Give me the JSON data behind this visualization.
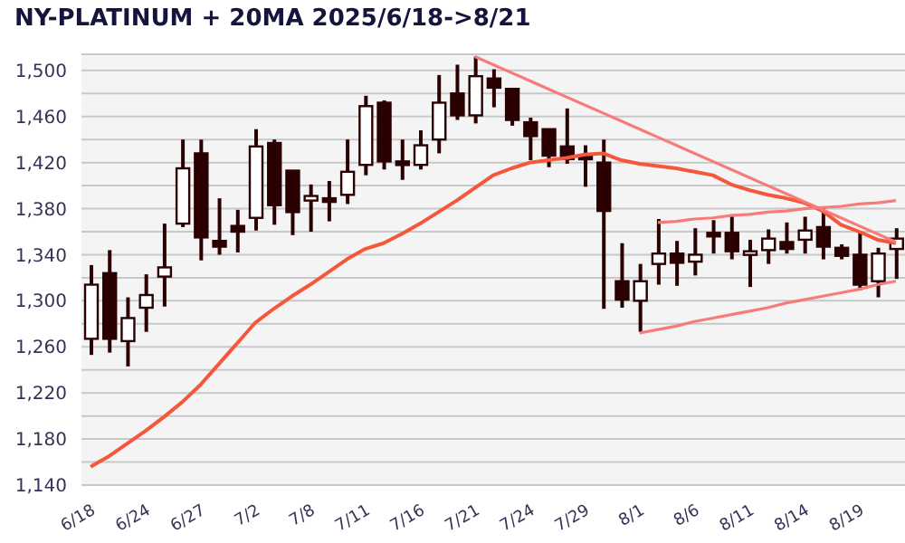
{
  "chart_data": {
    "type": "candlestick",
    "title": "NY-PLATINUM + 20MA 2025/6/18->8/21",
    "categories": [
      "6/18",
      null,
      null,
      "6/24",
      null,
      null,
      "6/27",
      null,
      null,
      "7/2",
      null,
      null,
      "7/8",
      null,
      null,
      "7/11",
      null,
      null,
      "7/16",
      null,
      null,
      "7/21",
      null,
      null,
      "7/24",
      null,
      null,
      "7/29",
      null,
      null,
      "8/1",
      null,
      null,
      "8/6",
      null,
      null,
      "8/11",
      null,
      null,
      "8/14",
      null,
      null,
      "8/19",
      null,
      null
    ],
    "color": "#2b0000",
    "ohlc": [
      [
        1267,
        1331,
        1253,
        1314
      ],
      [
        1324,
        1344,
        1255,
        1267
      ],
      [
        1265,
        1303,
        1243,
        1285
      ],
      [
        1294,
        1323,
        1273,
        1305
      ],
      [
        1321,
        1367,
        1295,
        1329
      ],
      [
        1367,
        1440,
        1364,
        1415
      ],
      [
        1428,
        1440,
        1335,
        1355
      ],
      [
        1352,
        1389,
        1340,
        1347
      ],
      [
        1365,
        1379,
        1342,
        1360
      ],
      [
        1372,
        1449,
        1361,
        1434
      ],
      [
        1437,
        1440,
        1366,
        1383
      ],
      [
        1413,
        1413,
        1357,
        1377
      ],
      [
        1387,
        1401,
        1360,
        1391
      ],
      [
        1389,
        1404,
        1369,
        1387
      ],
      [
        1392,
        1440,
        1384,
        1412
      ],
      [
        1418,
        1478,
        1409,
        1469
      ],
      [
        1472,
        1474,
        1414,
        1421
      ],
      [
        1421,
        1440,
        1405,
        1418
      ],
      [
        1418,
        1448,
        1414,
        1435
      ],
      [
        1440,
        1496,
        1428,
        1472
      ],
      [
        1480,
        1505,
        1457,
        1461
      ],
      [
        1461,
        1512,
        1454,
        1495
      ],
      [
        1493,
        1501,
        1468,
        1485
      ],
      [
        1484,
        1484,
        1452,
        1457
      ],
      [
        1455,
        1459,
        1422,
        1443
      ],
      [
        1449,
        1449,
        1416,
        1426
      ],
      [
        1434,
        1467,
        1419,
        1423
      ],
      [
        1426,
        1435,
        1399,
        1423
      ],
      [
        1420,
        1440,
        1293,
        1378
      ],
      [
        1317,
        1350,
        1294,
        1301
      ],
      [
        1300,
        1332,
        1273,
        1317
      ],
      [
        1332,
        1371,
        1314,
        1341
      ],
      [
        1341,
        1352,
        1313,
        1333
      ],
      [
        1334,
        1363,
        1322,
        1340
      ],
      [
        1359,
        1370,
        1341,
        1356
      ],
      [
        1359,
        1375,
        1336,
        1343
      ],
      [
        1340,
        1353,
        1312,
        1343
      ],
      [
        1344,
        1362,
        1332,
        1354
      ],
      [
        1351,
        1368,
        1341,
        1345
      ],
      [
        1353,
        1373,
        1341,
        1361
      ],
      [
        1364,
        1380,
        1336,
        1347
      ],
      [
        1346,
        1349,
        1336,
        1339
      ],
      [
        1340,
        1360,
        1309,
        1314
      ],
      [
        1317,
        1346,
        1303,
        1341
      ],
      [
        1345,
        1363,
        1319,
        1354
      ]
    ],
    "series": [
      {
        "type": "line",
        "color": "#f4573a",
        "values": [
          1156,
          1165,
          1176,
          1187,
          1199,
          1212,
          1227,
          1245,
          1263,
          1281,
          1293,
          1304,
          1314,
          1325,
          1336,
          1345,
          1350,
          1358,
          1367,
          1377,
          1387,
          1398,
          1409,
          1415,
          1420,
          1422,
          1424,
          1427,
          1428,
          1422,
          1419,
          1417,
          1415,
          1412,
          1409,
          1401,
          1396,
          1392,
          1389,
          1385,
          1378,
          1366,
          1360,
          1353,
          1350
        ]
      },
      {
        "type": "line",
        "color": "#f77b78",
        "values": [
          null,
          null,
          null,
          null,
          null,
          null,
          null,
          null,
          null,
          null,
          null,
          null,
          null,
          null,
          null,
          null,
          null,
          null,
          null,
          null,
          null,
          1512,
          1505,
          1498,
          1491,
          1484,
          1477,
          1470,
          1463,
          1456,
          1449,
          1442,
          1435,
          1428,
          1421,
          1414,
          1407,
          1400,
          1393,
          1386,
          1379,
          1372,
          1365,
          1358,
          1351
        ]
      },
      {
        "type": "line",
        "color": "#f77b78",
        "values": [
          null,
          null,
          null,
          null,
          null,
          null,
          null,
          null,
          null,
          null,
          null,
          null,
          null,
          null,
          null,
          null,
          null,
          null,
          null,
          null,
          null,
          null,
          null,
          null,
          null,
          null,
          null,
          null,
          null,
          null,
          null,
          1368,
          1369,
          1371,
          1372,
          1374,
          1375,
          1377,
          1378,
          1380,
          1381,
          1382,
          1384,
          1385,
          1387
        ]
      },
      {
        "type": "line",
        "color": "#f77b78",
        "values": [
          null,
          null,
          null,
          null,
          null,
          null,
          null,
          null,
          null,
          null,
          null,
          null,
          null,
          null,
          null,
          null,
          null,
          null,
          null,
          null,
          null,
          null,
          null,
          null,
          null,
          null,
          null,
          null,
          null,
          null,
          1272,
          1275,
          1278,
          1282,
          1285,
          1288,
          1291,
          1294,
          1298,
          1301,
          1304,
          1307,
          1310,
          1314,
          1317
        ]
      }
    ],
    "ylim": [
      1140,
      1514
    ],
    "yticks": [
      {
        "value": 1140,
        "label": "1,140"
      },
      {
        "value": 1160,
        "label": null
      },
      {
        "value": 1180,
        "label": "1,180"
      },
      {
        "value": 1200,
        "label": null
      },
      {
        "value": 1220,
        "label": "1,220"
      },
      {
        "value": 1240,
        "label": null
      },
      {
        "value": 1260,
        "label": "1,260"
      },
      {
        "value": 1280,
        "label": null
      },
      {
        "value": 1300,
        "label": "1,300"
      },
      {
        "value": 1320,
        "label": null
      },
      {
        "value": 1340,
        "label": "1,340"
      },
      {
        "value": 1360,
        "label": null
      },
      {
        "value": 1380,
        "label": "1,380"
      },
      {
        "value": 1400,
        "label": null
      },
      {
        "value": 1420,
        "label": "1,420"
      },
      {
        "value": 1440,
        "label": null
      },
      {
        "value": 1460,
        "label": "1,460"
      },
      {
        "value": 1480,
        "label": null
      },
      {
        "value": 1500,
        "label": "1,500"
      }
    ],
    "grid": "y"
  }
}
